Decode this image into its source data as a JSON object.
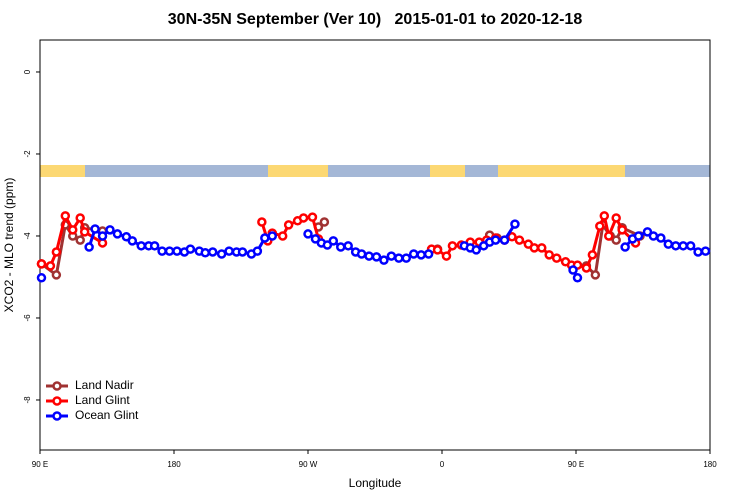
{
  "chart_data": {
    "type": "line",
    "title": "30N-35N September (Ver 10)   2015-01-01 to 2020-12-18",
    "xlabel": "Longitude",
    "ylabel": "XCO2 - MLO trend (ppm)",
    "xlim": [
      90,
      540
    ],
    "xticks": [
      {
        "value": 90,
        "label": "90 E"
      },
      180,
      {
        "value": 270,
        "label": "90 W"
      },
      {
        "value": 360,
        "label": "0"
      },
      {
        "value": 450,
        "label": "90 E"
      },
      {
        "value": 540,
        "label": "180"
      }
    ],
    "ylim": [
      -9.22,
      0.78
    ],
    "yticks": [
      0,
      -2,
      -4,
      -6,
      -8
    ],
    "legend": "bottom-left",
    "series": [
      {
        "name": "Land Nadir",
        "color": "#a03232",
        "x": [
          91,
          101,
          107,
          112,
          117,
          120,
          132,
          277,
          281,
          357,
          392,
          397,
          457,
          463,
          468,
          473,
          477,
          481,
          493
        ],
        "values": [
          -4.68,
          -4.95,
          -3.73,
          -4.0,
          -4.1,
          -3.8,
          -3.88,
          -3.78,
          -3.66,
          -4.32,
          -3.98,
          -4.05,
          -4.73,
          -4.95,
          -3.73,
          -4.0,
          -4.1,
          -3.8,
          -4.0
        ]
      },
      {
        "name": "Land Glint",
        "color": "#ff0000",
        "x": [
          91,
          97,
          101,
          107,
          112,
          117,
          120,
          132,
          239,
          243,
          246,
          253,
          257,
          263,
          267,
          273,
          277,
          353,
          357,
          363,
          367,
          373,
          379,
          385,
          390,
          396,
          402,
          407,
          412,
          418,
          422,
          427,
          432,
          437,
          443,
          447,
          451,
          457,
          461,
          466,
          469,
          472,
          477,
          481,
          490
        ],
        "values": [
          -4.68,
          -4.73,
          -4.39,
          -3.51,
          -3.85,
          -3.56,
          -3.9,
          -4.17,
          -3.66,
          -4.12,
          -3.93,
          -4.0,
          -3.73,
          -3.63,
          -3.56,
          -3.54,
          -4.07,
          -4.32,
          -4.34,
          -4.49,
          -4.24,
          -4.22,
          -4.15,
          -4.15,
          -4.1,
          -4.05,
          -4.1,
          -4.02,
          -4.1,
          -4.2,
          -4.29,
          -4.29,
          -4.46,
          -4.54,
          -4.63,
          -4.71,
          -4.71,
          -4.78,
          -4.46,
          -3.76,
          -3.51,
          -4.0,
          -3.56,
          -3.85,
          -4.17
        ]
      },
      {
        "name": "Ocean Glint",
        "color": "#0000ff",
        "x": [
          91,
          123,
          127,
          132,
          137,
          142,
          148,
          152,
          158,
          163,
          167,
          172,
          177,
          182,
          187,
          191,
          197,
          201,
          206,
          212,
          217,
          222,
          226,
          232,
          236,
          241,
          246,
          270,
          275,
          279,
          283,
          287,
          292,
          297,
          302,
          306,
          311,
          316,
          321,
          326,
          331,
          336,
          341,
          346,
          351,
          375,
          379,
          383,
          388,
          392,
          396,
          402,
          409,
          448,
          451,
          483,
          488,
          492,
          498,
          502,
          507,
          512,
          517,
          522,
          527,
          532,
          537
        ],
        "values": [
          -5.02,
          -4.27,
          -3.83,
          -4.0,
          -3.85,
          -3.95,
          -4.02,
          -4.12,
          -4.24,
          -4.24,
          -4.24,
          -4.37,
          -4.37,
          -4.37,
          -4.39,
          -4.32,
          -4.37,
          -4.41,
          -4.39,
          -4.44,
          -4.37,
          -4.39,
          -4.39,
          -4.44,
          -4.37,
          -4.05,
          -4.0,
          -3.95,
          -4.07,
          -4.17,
          -4.22,
          -4.12,
          -4.27,
          -4.24,
          -4.39,
          -4.44,
          -4.49,
          -4.51,
          -4.59,
          -4.49,
          -4.54,
          -4.54,
          -4.44,
          -4.46,
          -4.44,
          -4.24,
          -4.29,
          -4.34,
          -4.24,
          -4.15,
          -4.1,
          -4.1,
          -3.71,
          -4.83,
          -5.02,
          -4.27,
          -4.07,
          -4.0,
          -3.9,
          -4.0,
          -4.05,
          -4.2,
          -4.24,
          -4.24,
          -4.24,
          -4.39,
          -4.37
        ]
      }
    ]
  }
}
